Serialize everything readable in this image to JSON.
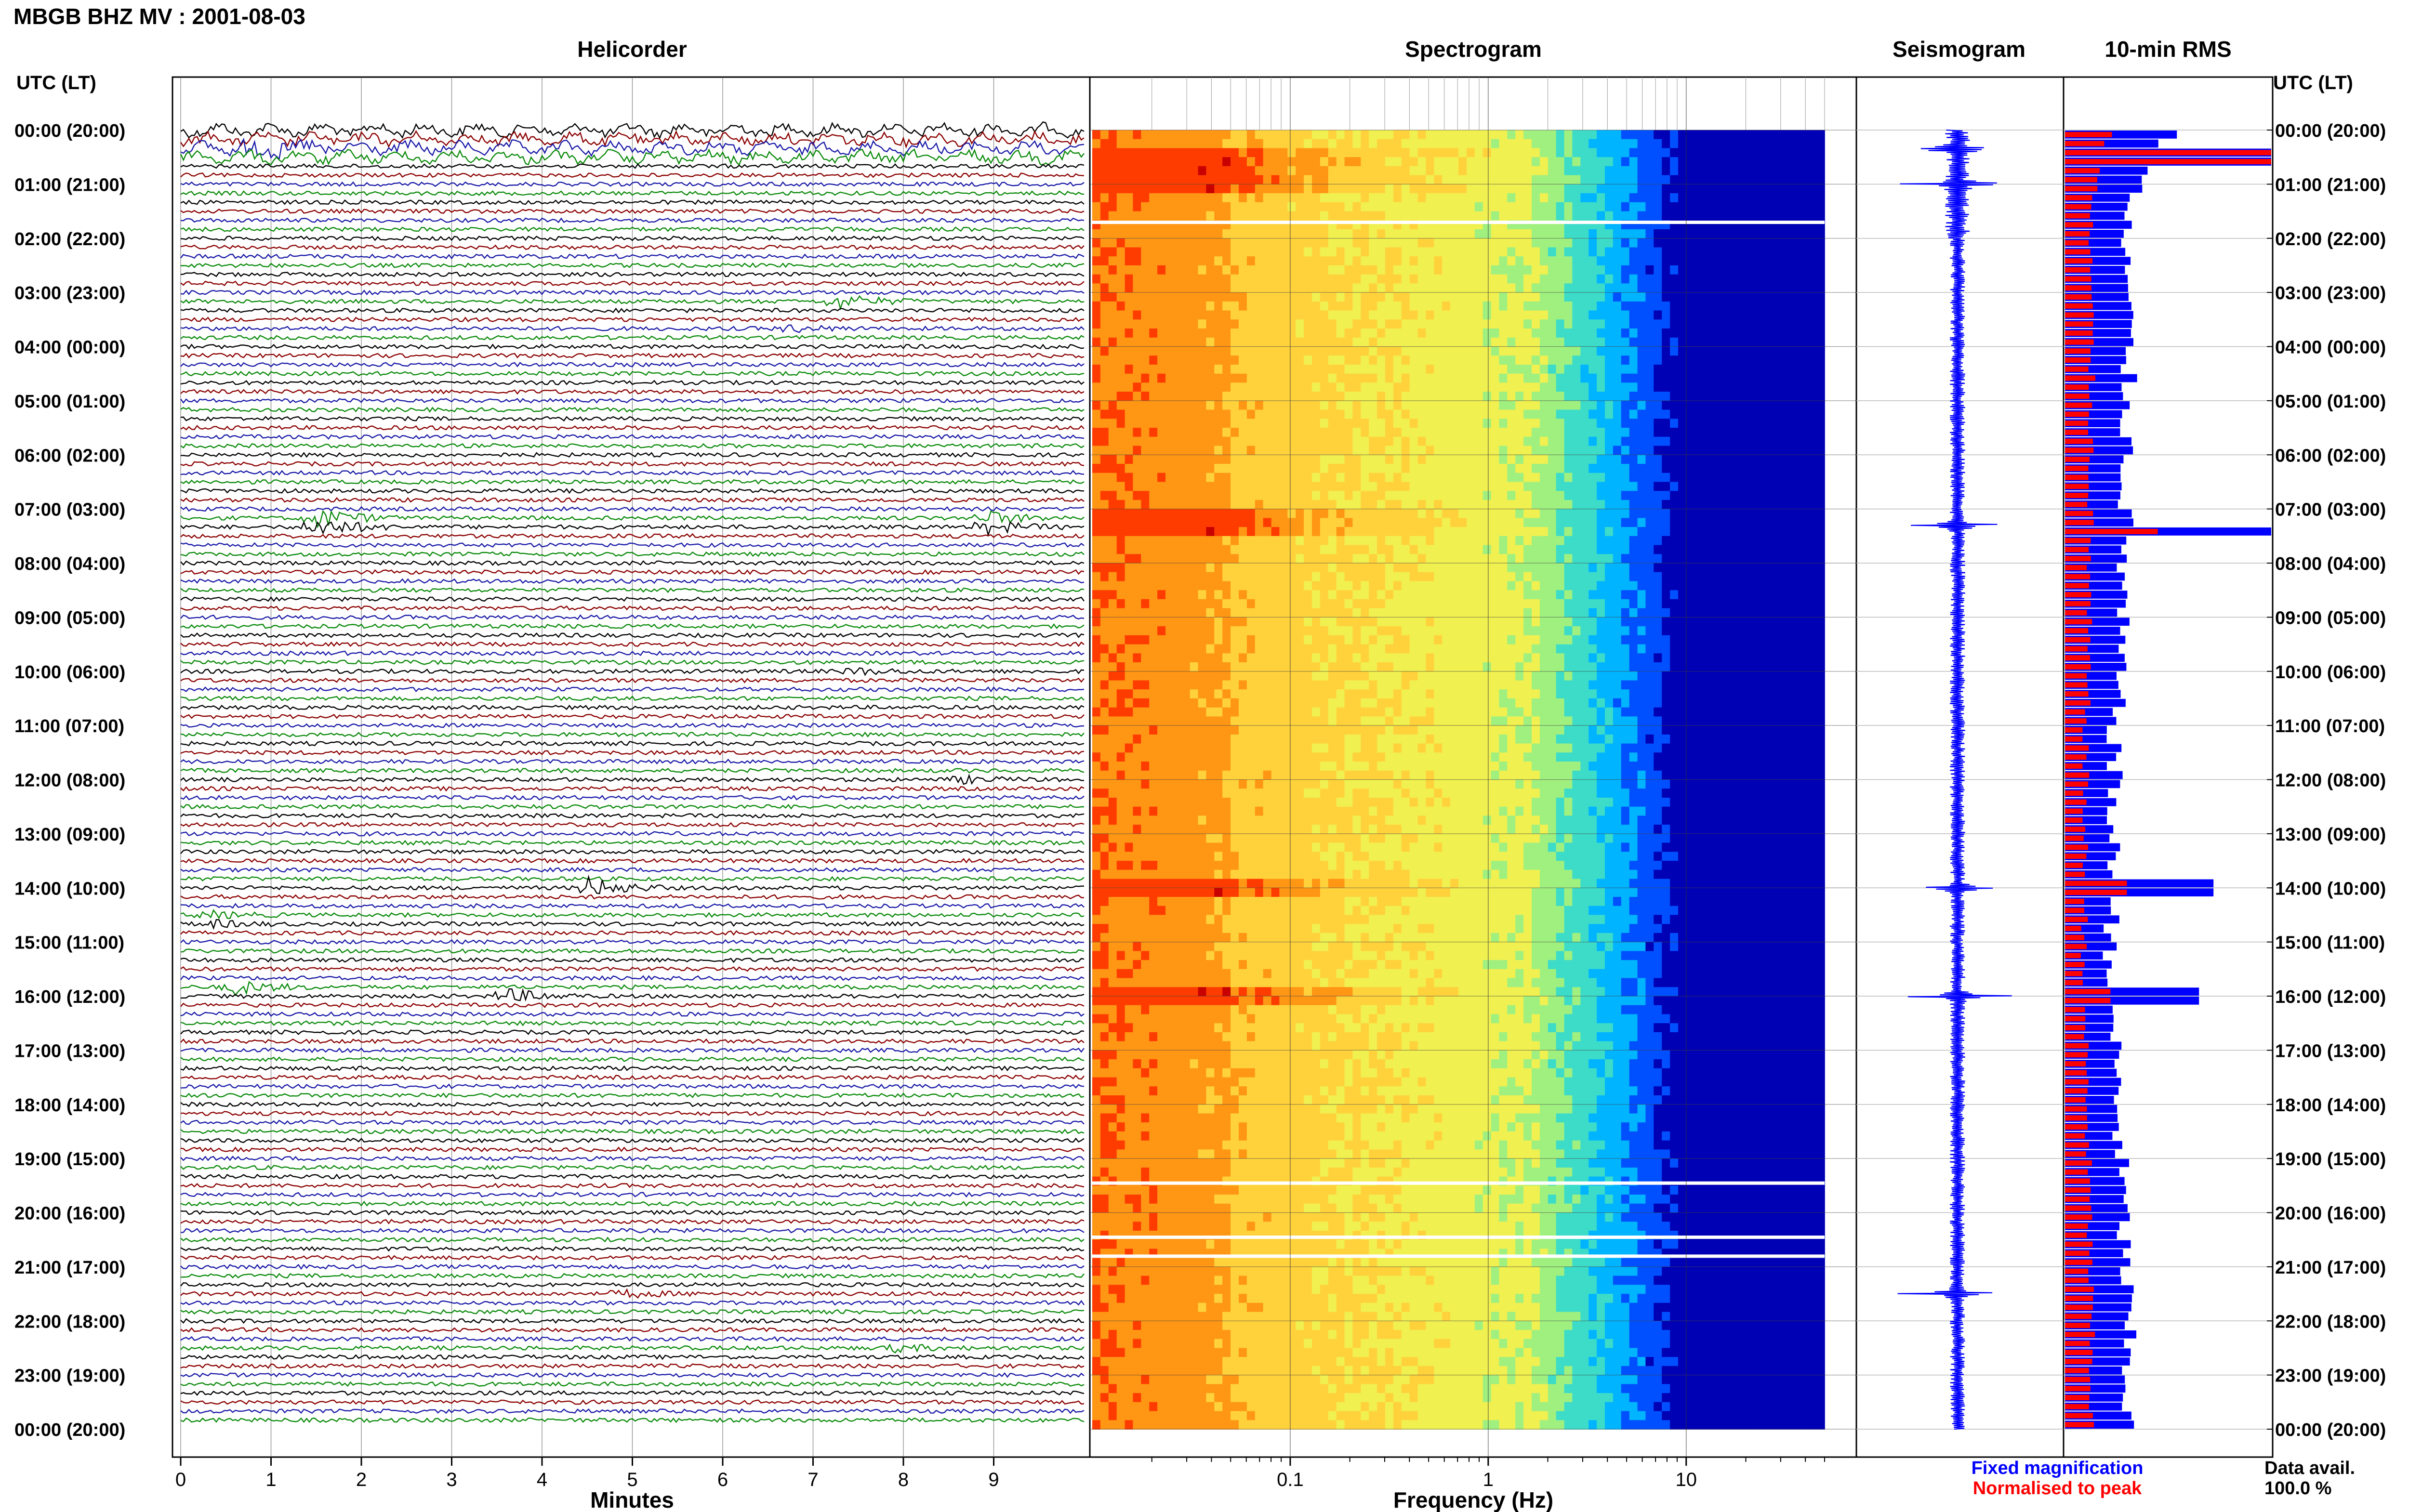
{
  "chart_data": {
    "type": "heatmap",
    "title": "MBGB BHZ MV : 2001-08-03",
    "time_axis": {
      "label": "UTC (LT)",
      "right_label": "UTC (LT)",
      "ticks": [
        "00:00 (20:00)",
        "01:00 (21:00)",
        "02:00 (22:00)",
        "03:00 (23:00)",
        "04:00 (00:00)",
        "05:00 (01:00)",
        "06:00 (02:00)",
        "07:00 (03:00)",
        "08:00 (04:00)",
        "09:00 (05:00)",
        "10:00 (06:00)",
        "11:00 (07:00)",
        "12:00 (08:00)",
        "13:00 (09:00)",
        "14:00 (10:00)",
        "15:00 (11:00)",
        "16:00 (12:00)",
        "17:00 (13:00)",
        "18:00 (14:00)",
        "19:00 (15:00)",
        "20:00 (16:00)",
        "21:00 (17:00)",
        "22:00 (18:00)",
        "23:00 (19:00)",
        "00:00 (20:00)"
      ],
      "range_hours": [
        0,
        24
      ]
    },
    "panels": [
      {
        "type": "line",
        "name": "Helicorder",
        "xlabel": "Minutes",
        "xlim": [
          0,
          10
        ],
        "xticks": [
          "0",
          "1",
          "2",
          "3",
          "4",
          "5",
          "6",
          "7",
          "8",
          "9"
        ],
        "lines_per_hour": 6,
        "trace_colors": [
          "#000000",
          "#8b0000",
          "#1a1aa8",
          "#0a8a0a"
        ],
        "events": [
          {
            "hour": 0.35,
            "minute": 0.8,
            "strength": 3
          },
          {
            "hour": 3.1,
            "minute": 7.3,
            "strength": 2
          },
          {
            "hour": 3.6,
            "minute": 6.7,
            "strength": 1
          },
          {
            "hour": 7.25,
            "minute": 1.5,
            "strength": 3
          },
          {
            "hour": 7.25,
            "minute": 8.9,
            "strength": 2
          },
          {
            "hour": 10.0,
            "minute": 7.4,
            "strength": 1
          },
          {
            "hour": 12.0,
            "minute": 8.6,
            "strength": 1
          },
          {
            "hour": 14.0,
            "minute": 4.5,
            "strength": 3
          },
          {
            "hour": 14.6,
            "minute": 0.3,
            "strength": 1
          },
          {
            "hour": 15.8,
            "minute": 0.6,
            "strength": 2
          },
          {
            "hour": 16.05,
            "minute": 3.6,
            "strength": 2
          },
          {
            "hour": 21.5,
            "minute": 4.9,
            "strength": 1
          },
          {
            "hour": 22.5,
            "minute": 7.9,
            "strength": 1
          }
        ]
      },
      {
        "type": "heatmap",
        "name": "Spectrogram",
        "xlabel": "Frequency (Hz)",
        "xscale": "log",
        "xlim": [
          0.01,
          50
        ],
        "xticks": [
          "0.1",
          "1",
          "10"
        ],
        "xtick_values": [
          0.1,
          1,
          10
        ],
        "colormap": [
          "#0000b4",
          "#0050ff",
          "#00b4ff",
          "#3cdcc8",
          "#a0f080",
          "#f0f050",
          "#ffd23c",
          "#ff9614",
          "#ff3c00",
          "#c80000"
        ],
        "data_gaps_hours": [
          1.7,
          19.45,
          20.45,
          20.8
        ],
        "events_hours": [
          0.6,
          1.0,
          7.3,
          14.0,
          16.0
        ]
      },
      {
        "type": "line",
        "name": "Seismogram",
        "color": "#0000ff",
        "events_hours": [
          0.35,
          1.0,
          7.3,
          14.0,
          16.0,
          21.5
        ]
      },
      {
        "type": "bar",
        "name": "10-min RMS",
        "orientation": "horizontal",
        "bins_per_hour": 6,
        "series": [
          {
            "name": "Fixed magnification",
            "color": "#0000ff"
          },
          {
            "name": "Normalised to peak",
            "color": "#ff0000"
          }
        ],
        "peaks": [
          {
            "hour": 0.5,
            "fixed": 1.0,
            "normalised": 1.0
          },
          {
            "hour": 7.4,
            "fixed": 1.0,
            "normalised": 0.45
          },
          {
            "hour": 14.0,
            "fixed": 0.72,
            "normalised": 0.3
          },
          {
            "hour": 16.0,
            "fixed": 0.65,
            "normalised": 0.22
          }
        ]
      }
    ],
    "legend": [
      "Fixed magnification",
      "Normalised to peak"
    ],
    "legend_position": "bottom-right",
    "data_availability": {
      "label": "Data avail.",
      "value": "100.0 %"
    }
  }
}
